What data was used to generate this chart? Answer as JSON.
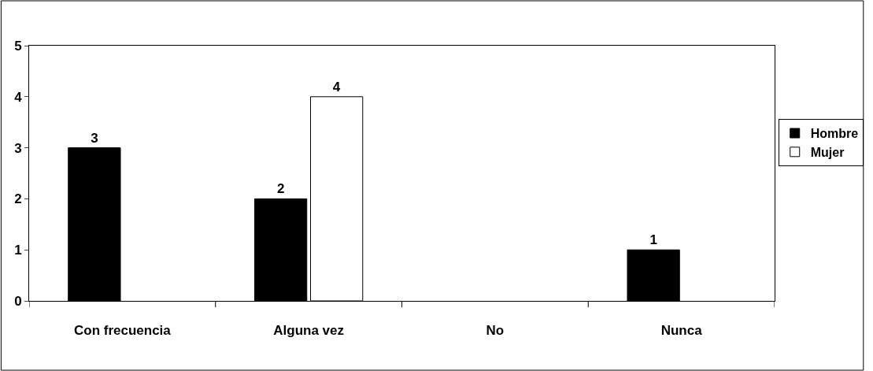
{
  "chart_data": {
    "type": "bar",
    "categories": [
      "Con frecuencia",
      "Alguna vez",
      "No",
      "Nunca"
    ],
    "series": [
      {
        "name": "Hombre",
        "color": "#000000",
        "values": [
          3,
          2,
          null,
          1
        ]
      },
      {
        "name": "Mujer",
        "color": "#ffffff",
        "values": [
          null,
          4,
          null,
          null
        ]
      }
    ],
    "ylim": [
      0,
      5
    ],
    "yticks": [
      0,
      1,
      2,
      3,
      4,
      5
    ],
    "grid": false,
    "legend": "right",
    "data_labels": true
  }
}
